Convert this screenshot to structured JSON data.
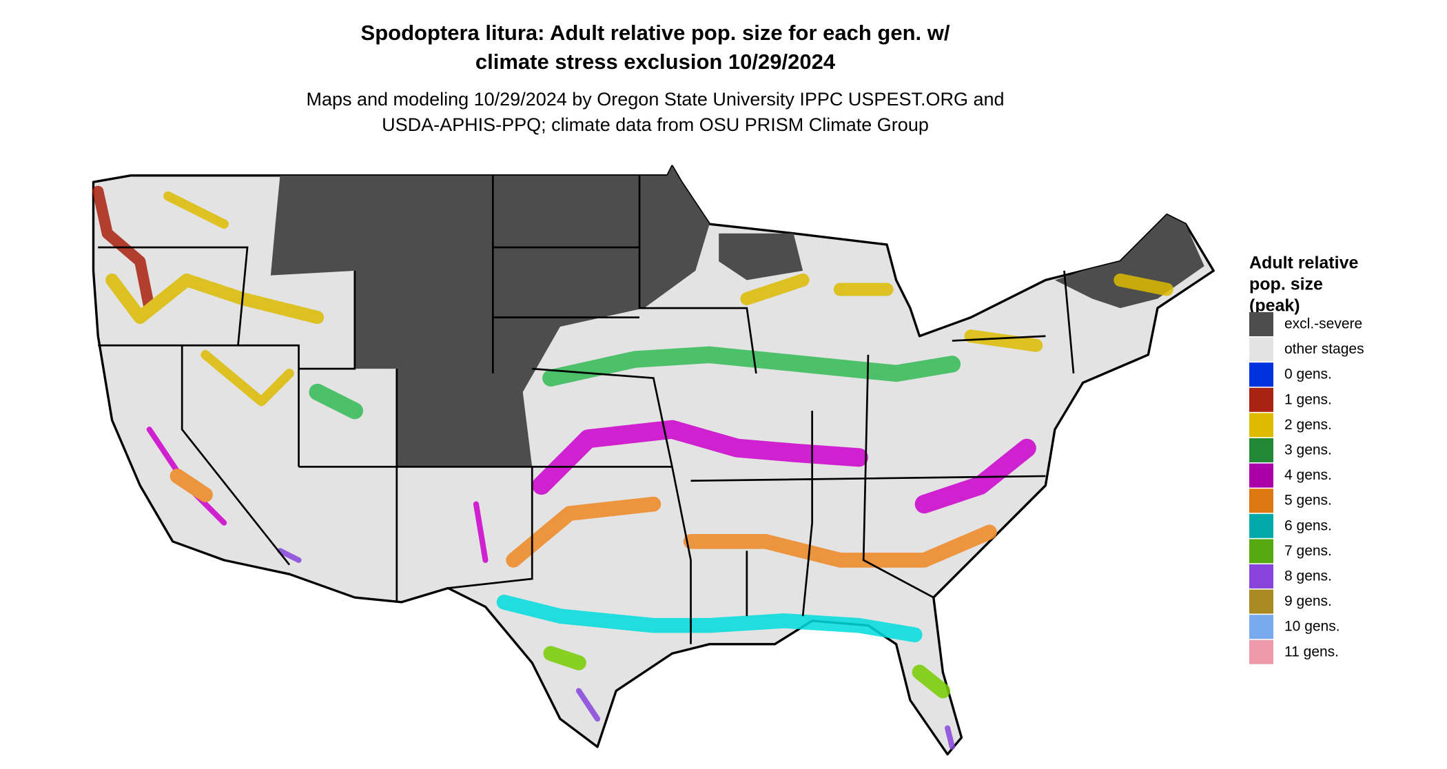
{
  "title": [
    "Spodoptera litura: Adult relative pop. size for each gen. w/",
    "climate stress exclusion 10/29/2024"
  ],
  "subtitle": [
    "Maps and modeling 10/29/2024 by Oregon State University IPPC USPEST.ORG and",
    "USDA-APHIS-PPQ; climate data from OSU PRISM Climate Group"
  ],
  "legend": {
    "title": [
      "Adult relative",
      "pop. size",
      "(peak)"
    ],
    "items": [
      {
        "label": "excl.-severe",
        "color": "#4d4d4d"
      },
      {
        "label": "other stages",
        "color": "#e3e3e3"
      },
      {
        "label": "0 gens.",
        "color": "#0033dd"
      },
      {
        "label": "1 gens.",
        "color": "#aa2211"
      },
      {
        "label": "2 gens.",
        "color": "#ddbb00"
      },
      {
        "label": "3 gens.",
        "color": "#228833"
      },
      {
        "label": "4 gens.",
        "color": "#aa00aa"
      },
      {
        "label": "5 gens.",
        "color": "#dd7711"
      },
      {
        "label": "6 gens.",
        "color": "#00aaaa"
      },
      {
        "label": "7 gens.",
        "color": "#55aa11"
      },
      {
        "label": "8 gens.",
        "color": "#8844dd"
      },
      {
        "label": "9 gens.",
        "color": "#aa8822"
      },
      {
        "label": "10 gens.",
        "color": "#77aaee"
      },
      {
        "label": "11 gens.",
        "color": "#ee99aa"
      }
    ]
  }
}
